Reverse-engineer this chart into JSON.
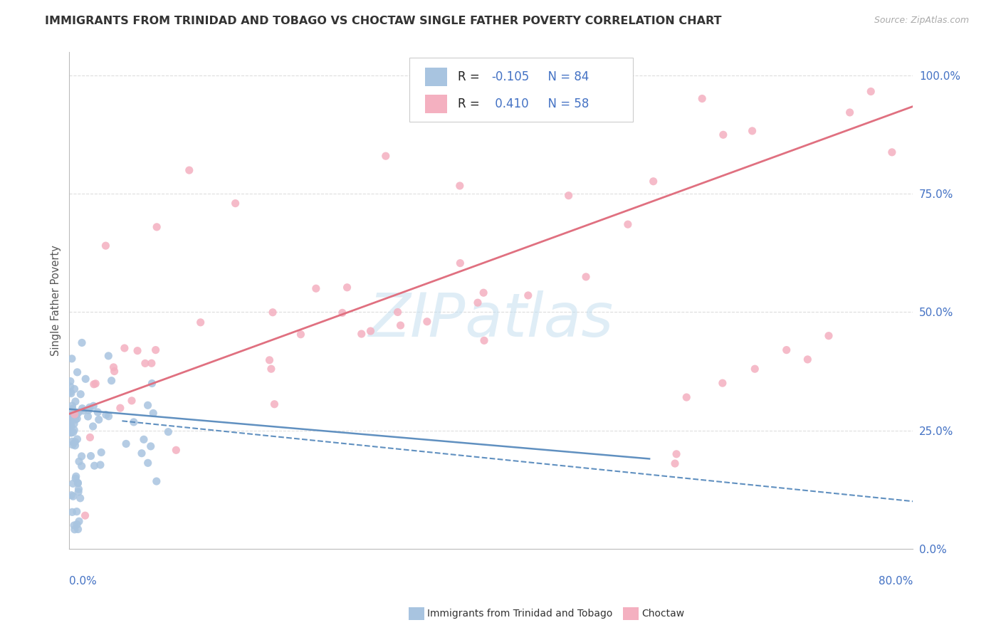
{
  "title": "IMMIGRANTS FROM TRINIDAD AND TOBAGO VS CHOCTAW SINGLE FATHER POVERTY CORRELATION CHART",
  "source": "Source: ZipAtlas.com",
  "ylabel": "Single Father Poverty",
  "r_blue": -0.105,
  "n_blue": 84,
  "r_pink": 0.41,
  "n_pink": 58,
  "blue_color": "#a8c4e0",
  "pink_color": "#f4b0c0",
  "blue_line_color": "#6090c0",
  "pink_line_color": "#e07080",
  "xmin": 0.0,
  "xmax": 0.8,
  "ymin": 0.0,
  "ymax": 1.05,
  "right_yticks": [
    0.0,
    0.25,
    0.5,
    0.75,
    1.0
  ],
  "right_yticklabels": [
    "0.0%",
    "25.0%",
    "50.0%",
    "75.0%",
    "100.0%"
  ],
  "blue_trend_x": [
    0.0,
    0.55
  ],
  "blue_trend_y": [
    0.295,
    0.19
  ],
  "pink_trend_x": [
    0.0,
    0.8
  ],
  "pink_trend_y": [
    0.285,
    0.935
  ],
  "watermark_text": "ZIPatlas",
  "legend_r_color": "#4472c4",
  "legend_n_color": "#4472c4"
}
